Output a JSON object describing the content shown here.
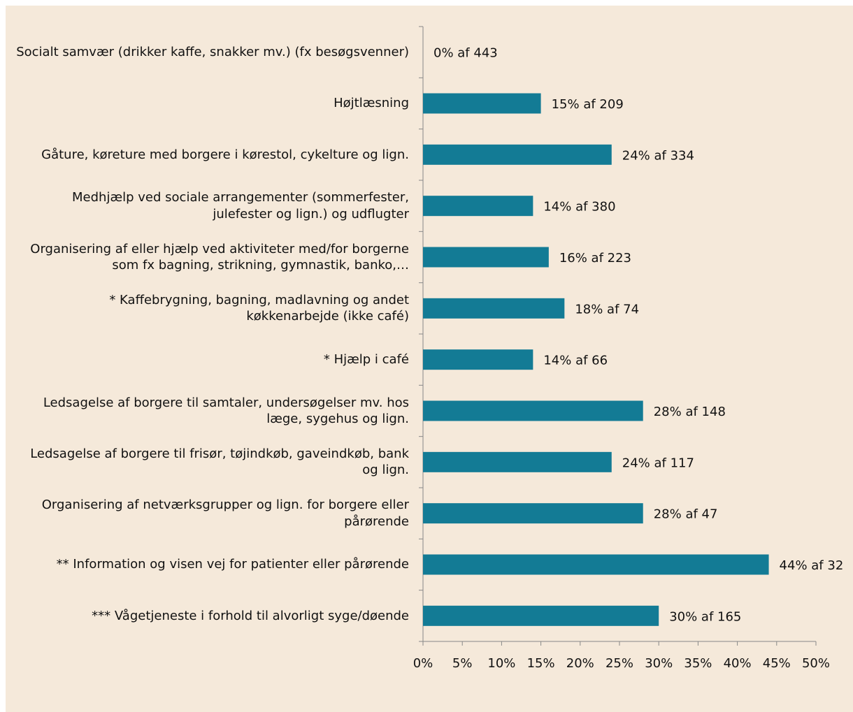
{
  "chart_data": {
    "type": "bar",
    "orientation": "horizontal",
    "color": "#137b95",
    "categories": [
      "Socialt samvær (drikker kaffe, snakker mv.) (fx besøgsvenner)",
      "Højtlæsning",
      "Gåture, køreture med borgere i kørestol, cykelture og lign.",
      "Medhjælp ved sociale arrangementer (sommerfester, julefester og lign.) og udflugter",
      "Organisering af eller hjælp ved aktiviteter med/for borgerne som fx bagning, strikning, gymnastik, banko,…",
      "* Kaffebrygning, bagning, madlavning og andet køkkenarbejde (ikke café)",
      "* Hjælp i café",
      "Ledsagelse af borgere til samtaler, undersøgelser mv. hos læge, sygehus og lign.",
      "Ledsagelse af borgere til frisør, tøjindkøb, gaveindkøb, bank og lign.",
      "Organisering af netværksgrupper og lign. for borgere eller pårørende",
      "** Information og visen vej for patienter eller pårørende",
      "*** Vågetjeneste i forhold til alvorligt syge/døende"
    ],
    "values": [
      0,
      15,
      24,
      14,
      16,
      18,
      14,
      28,
      24,
      28,
      44,
      30
    ],
    "value_labels": [
      "0% af 443",
      "15% af 209",
      "24% af 334",
      "14% af 380",
      "16% af 223",
      "18% af 74",
      "14% af 66",
      "28% af 148",
      "24% af 117",
      "28% af 47",
      "44% af 32",
      "30% af 165"
    ],
    "xlim": [
      0,
      50
    ],
    "xticks": [
      {
        "value": 0,
        "label": "0%"
      },
      {
        "value": 5,
        "label": "5%"
      },
      {
        "value": 10,
        "label": "10%"
      },
      {
        "value": 15,
        "label": "15%"
      },
      {
        "value": 20,
        "label": "20%"
      },
      {
        "value": 25,
        "label": "25%"
      },
      {
        "value": 30,
        "label": "30%"
      },
      {
        "value": 35,
        "label": "35%"
      },
      {
        "value": 40,
        "label": "40%"
      },
      {
        "value": 45,
        "label": "45%"
      },
      {
        "value": 50,
        "label": "50%"
      }
    ]
  }
}
